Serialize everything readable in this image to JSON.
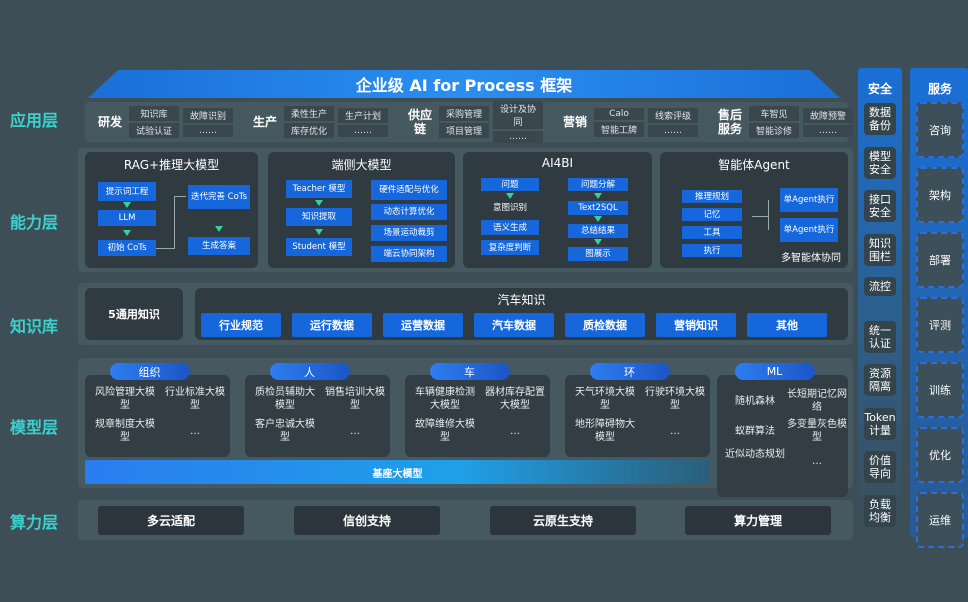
{
  "title": "企业级 AI for Process 框架",
  "layers": [
    "应用层",
    "能力层",
    "知识库",
    "模型层",
    "算力层"
  ],
  "app_groups": [
    {
      "name": "研发",
      "items": [
        [
          "知识库",
          "试验认证"
        ],
        [
          "故障识别",
          "……"
        ]
      ]
    },
    {
      "name": "生产",
      "items": [
        [
          "柔性生产",
          "库存优化"
        ],
        [
          "生产计划",
          "……"
        ]
      ]
    },
    {
      "name": "供应链",
      "items": [
        [
          "采购管理",
          "项目管理"
        ],
        [
          "设计及协同",
          "……"
        ]
      ]
    },
    {
      "name": "营销",
      "items": [
        [
          "Calo",
          "智能工牌"
        ],
        [
          "线索评级",
          "……"
        ]
      ]
    },
    {
      "name": "售后服务",
      "items": [
        [
          "车智见",
          "智能诊修"
        ],
        [
          "故障预警",
          "……"
        ]
      ]
    }
  ],
  "capability": {
    "rag": {
      "title": "RAG+推理大模型",
      "boxes": [
        "提示词工程",
        "LLM",
        "初始 CoTs",
        "迭代完善 CoTs",
        "生成答案"
      ]
    },
    "edge": {
      "title": "端侧大模型",
      "boxes": [
        "Teacher 模型",
        "知识提取",
        "Student 模型",
        "硬件适配与优化",
        "动态计算优化",
        "场景运动裁剪",
        "端云协同架构"
      ]
    },
    "ai4bi": {
      "title": "AI4BI",
      "boxes": [
        "问题",
        "意图识别",
        "语义生成",
        "复杂度判断",
        "问题分解",
        "Text2SQL",
        "总结结果",
        "图展示"
      ]
    },
    "agent": {
      "title": "智能体Agent",
      "boxes": [
        "推理规划",
        "记忆",
        "工具",
        "执行",
        "单Agent执行",
        "单Agent执行"
      ],
      "footer": "多智能体协同"
    }
  },
  "knowledge": {
    "general": "5通用知识",
    "auto_title": "汽车知识",
    "items": [
      "行业规范",
      "运行数据",
      "运营数据",
      "汽车数据",
      "质检数据",
      "营销知识",
      "其他"
    ]
  },
  "models": [
    {
      "name": "组织",
      "items": [
        "风险管理大模型",
        "行业标准大模型",
        "规章制度大模型",
        "…"
      ]
    },
    {
      "name": "人",
      "items": [
        "质检员辅助大模型",
        "销售培训大模型",
        "客户忠诚大模型",
        "…"
      ]
    },
    {
      "name": "车",
      "items": [
        "车辆健康检测大模型",
        "器材库存配置大模型",
        "故障维修大模型",
        "…"
      ]
    },
    {
      "name": "环",
      "items": [
        "天气环境大模型",
        "行驶环境大模型",
        "地形障碍物大模型",
        "…"
      ]
    },
    {
      "name": "ML",
      "items": [
        "随机森林",
        "长短期记忆网络",
        "蚁群算法",
        "多变量灰色模型",
        "近似动态规划",
        "…"
      ]
    }
  ],
  "base_model": "基座大模型",
  "compute": [
    "多云适配",
    "信创支持",
    "云原生支持",
    "算力管理"
  ],
  "security": {
    "title": "安全",
    "items": [
      "数据备份",
      "模型安全",
      "接口安全",
      "知识围栏",
      "流控",
      "统一认证",
      "资源隔离",
      "Token计量",
      "价值导向",
      "负载均衡"
    ]
  },
  "service": {
    "title": "服务",
    "items": [
      "咨询",
      "架构",
      "部署",
      "评测",
      "训练",
      "优化",
      "运维"
    ]
  },
  "colors": {
    "accent": "#1667db",
    "layer_label": "#39d2cf",
    "arrow": "#33d49a"
  }
}
